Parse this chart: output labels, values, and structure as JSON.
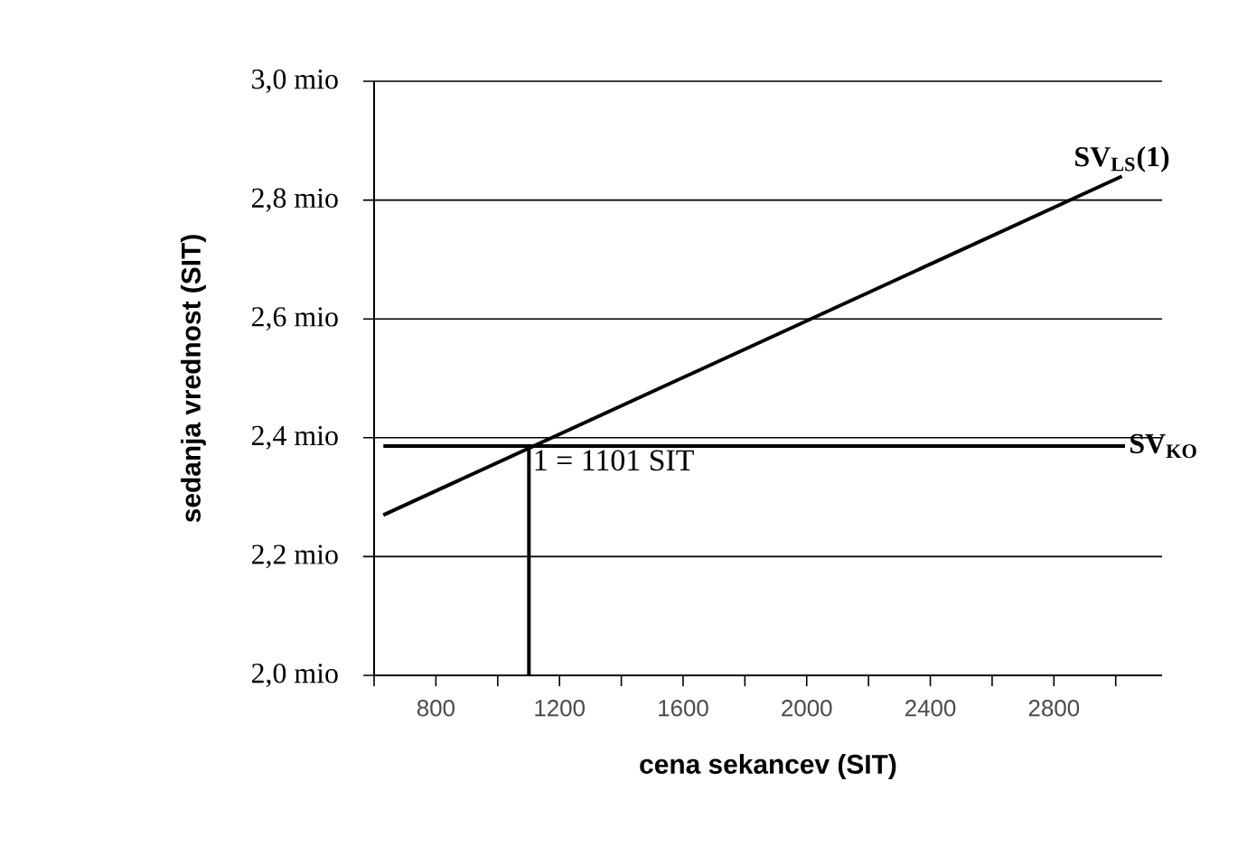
{
  "chart_data": {
    "type": "line",
    "xlabel": "cena sekancev (SIT)",
    "ylabel": "sedanja vrednost (SIT)",
    "xlim": [
      600,
      3150
    ],
    "ylim": [
      2.0,
      3.0
    ],
    "xticks": [
      {
        "value": 600,
        "label": null
      },
      800,
      {
        "value": 1000,
        "label": null
      },
      1200,
      {
        "value": 1400,
        "label": null
      },
      1600,
      {
        "value": 1800,
        "label": null
      },
      2000,
      {
        "value": 2200,
        "label": null
      },
      2400,
      {
        "value": 2600,
        "label": null
      },
      2800,
      {
        "value": 3000,
        "label": null
      }
    ],
    "yticks": [
      {
        "value": 2.0,
        "label": "2,0 mio"
      },
      {
        "value": 2.2,
        "label": "2,2 mio"
      },
      {
        "value": 2.4,
        "label": "2,4 mio"
      },
      {
        "value": 2.6,
        "label": "2,6 mio"
      },
      {
        "value": 2.8,
        "label": "2,8 mio"
      },
      {
        "value": 3.0,
        "label": "3,0 mio"
      }
    ],
    "grid": "y",
    "legend": false,
    "marker": "none",
    "line_style": "solid",
    "series": [
      {
        "name": "SV$_{LS}$(1)",
        "color": "#000000",
        "x": [
          630,
          3020
        ],
        "values": [
          2.27,
          2.84
        ]
      },
      {
        "name": "SV$_{KO}$",
        "color": "#000000",
        "x": [
          630,
          3030
        ],
        "values": [
          2.386,
          2.386
        ]
      },
      {
        "color": "#000000",
        "x": [
          1101,
          1101
        ],
        "values": [
          2.0,
          2.386
        ]
      }
    ],
    "annotations": [
      {
        "text": "1 = 1101 SIT",
        "x": 1101,
        "y": 2.386
      }
    ]
  }
}
